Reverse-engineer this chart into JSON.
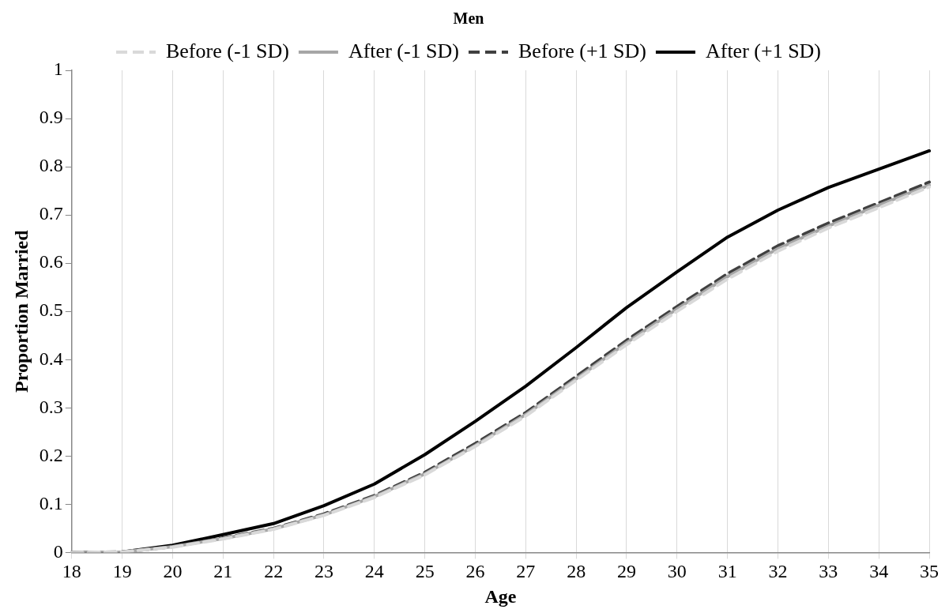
{
  "chart_data": {
    "type": "line",
    "title": "Men",
    "xlabel": "Age",
    "ylabel": "Proportion Married",
    "categories": [
      "18",
      "19",
      "20",
      "21",
      "22",
      "23",
      "24",
      "25",
      "26",
      "27",
      "28",
      "29",
      "30",
      "31",
      "32",
      "33",
      "34",
      "35"
    ],
    "series": [
      {
        "name": "Before (-1 SD)",
        "color": "#d9d9d9",
        "line_style": "dashed",
        "values": [
          0,
          0.001,
          0.011,
          0.028,
          0.048,
          0.077,
          0.114,
          0.161,
          0.22,
          0.283,
          0.357,
          0.431,
          0.5,
          0.567,
          0.625,
          0.673,
          0.715,
          0.758
        ]
      },
      {
        "name": "After (-1 SD)",
        "color": "#a6a6a6",
        "line_style": "solid",
        "values": [
          0,
          0.001,
          0.012,
          0.029,
          0.049,
          0.078,
          0.116,
          0.163,
          0.222,
          0.286,
          0.36,
          0.435,
          0.505,
          0.572,
          0.63,
          0.677,
          0.72,
          0.762
        ]
      },
      {
        "name": "Before (+1 SD)",
        "color": "#404040",
        "line_style": "dashed",
        "values": [
          0,
          0.001,
          0.012,
          0.03,
          0.05,
          0.08,
          0.118,
          0.166,
          0.226,
          0.29,
          0.365,
          0.44,
          0.51,
          0.578,
          0.636,
          0.683,
          0.725,
          0.768
        ]
      },
      {
        "name": "After (+1 SD)",
        "color": "#000000",
        "line_style": "solid",
        "values": [
          0,
          0.001,
          0.015,
          0.037,
          0.06,
          0.097,
          0.142,
          0.203,
          0.272,
          0.345,
          0.425,
          0.508,
          0.582,
          0.654,
          0.71,
          0.757,
          0.795,
          0.833
        ]
      }
    ],
    "ylim": [
      0,
      1
    ],
    "yticks": [
      0,
      0.1,
      0.2,
      0.3,
      0.4,
      0.5,
      0.6,
      0.7,
      0.8,
      0.9,
      1
    ],
    "grid": "x",
    "legend": "top",
    "marker": "none"
  }
}
